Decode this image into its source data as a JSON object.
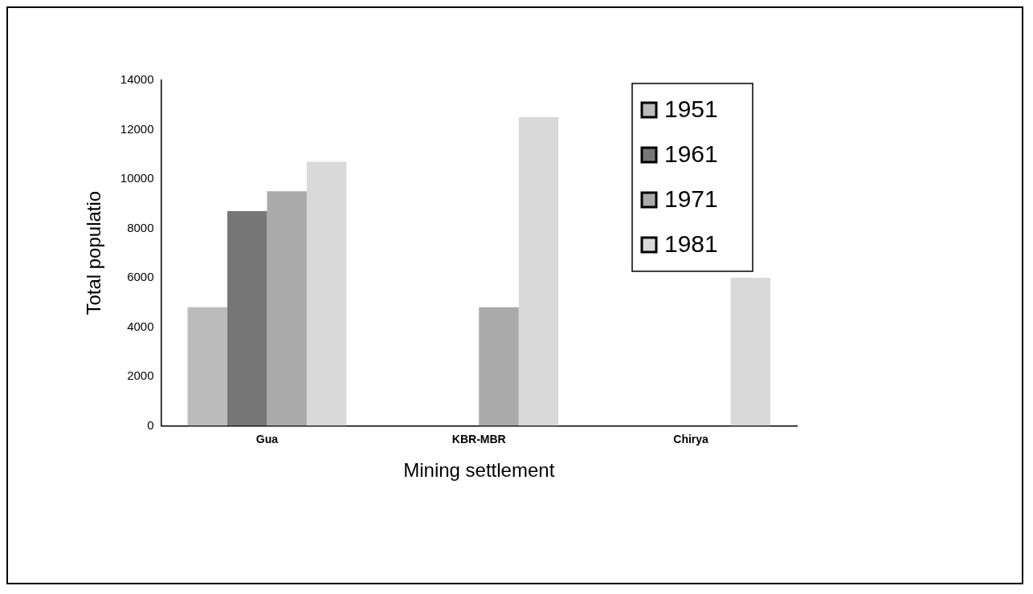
{
  "chart_data": {
    "type": "bar",
    "xlabel": "Mining settlement",
    "ylabel": "Total populatio",
    "categories": [
      "Gua",
      "KBR-MBR",
      "Chirya"
    ],
    "series": [
      {
        "name": "1951",
        "color": "#bbbbbb",
        "values": [
          4800,
          null,
          null
        ]
      },
      {
        "name": "1961",
        "color": "#777777",
        "values": [
          8700,
          null,
          null
        ]
      },
      {
        "name": "1971",
        "color": "#aaaaaa",
        "values": [
          9500,
          4800,
          null
        ]
      },
      {
        "name": "1981",
        "color": "#d9d9d9",
        "values": [
          10700,
          12500,
          6000
        ]
      }
    ],
    "ylim": [
      0,
      14000
    ],
    "yticks": [
      0,
      2000,
      4000,
      6000,
      8000,
      10000,
      12000,
      14000
    ],
    "grid": false,
    "legend": "top right"
  }
}
